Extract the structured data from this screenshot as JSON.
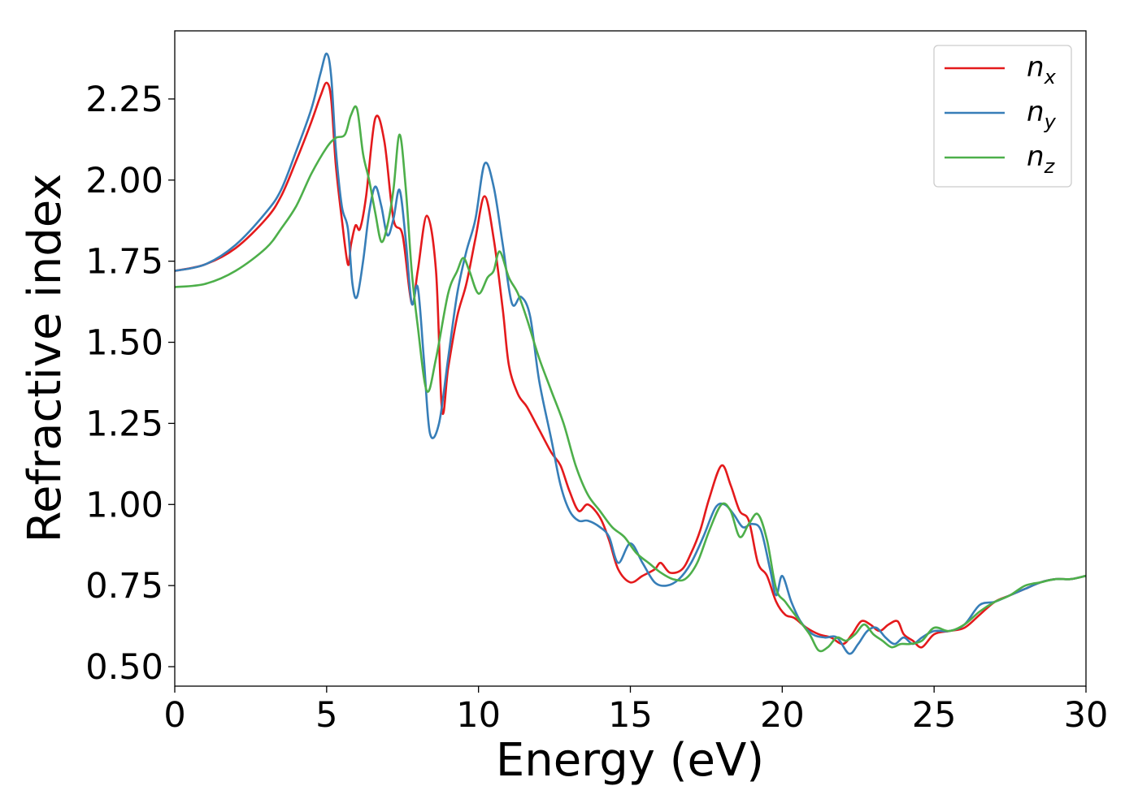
{
  "chart_data": {
    "type": "line",
    "title": "",
    "xlabel": "Energy (eV)",
    "ylabel": "Refractive index",
    "xlim": [
      0,
      30
    ],
    "ylim": [
      0.44,
      2.46
    ],
    "xticks": [
      0,
      5,
      10,
      15,
      20,
      25,
      30
    ],
    "xtick_labels": [
      "0",
      "5",
      "10",
      "15",
      "20",
      "25",
      "30"
    ],
    "yticks": [
      0.5,
      0.75,
      1.0,
      1.25,
      1.5,
      1.75,
      2.0,
      2.25
    ],
    "ytick_labels": [
      "0.50",
      "0.75",
      "1.00",
      "1.25",
      "1.50",
      "1.75",
      "2.00",
      "2.25"
    ],
    "grid": false,
    "legend_position": "top-right",
    "series": [
      {
        "name": "n_x",
        "legend_base": "n",
        "legend_sub": "x",
        "color": "#e41a1c",
        "x": [
          0,
          1,
          2,
          3,
          3.5,
          4,
          4.5,
          4.8,
          5.0,
          5.15,
          5.3,
          5.5,
          5.7,
          5.8,
          5.95,
          6.1,
          6.3,
          6.6,
          6.9,
          7.2,
          7.5,
          7.8,
          8.0,
          8.3,
          8.6,
          8.8,
          9.0,
          9.3,
          9.6,
          9.9,
          10.2,
          10.5,
          10.8,
          11.0,
          11.3,
          11.6,
          12.0,
          12.4,
          12.7,
          13.0,
          13.3,
          13.6,
          14.0,
          14.3,
          14.6,
          15.0,
          15.4,
          15.8,
          16.0,
          16.3,
          16.7,
          17.0,
          17.3,
          17.6,
          18.0,
          18.3,
          18.6,
          18.9,
          19.2,
          19.5,
          19.8,
          20.1,
          20.4,
          20.8,
          21.2,
          21.6,
          22.0,
          22.3,
          22.6,
          22.9,
          23.2,
          23.5,
          23.8,
          24.0,
          24.3,
          24.6,
          25.0,
          25.5,
          26.0,
          26.5,
          27.0,
          27.5,
          28.0,
          28.5,
          29.0,
          29.5,
          30.0
        ],
        "y": [
          1.72,
          1.74,
          1.79,
          1.88,
          1.95,
          2.06,
          2.18,
          2.26,
          2.3,
          2.25,
          2.05,
          1.88,
          1.74,
          1.8,
          1.86,
          1.85,
          1.95,
          2.19,
          2.12,
          1.88,
          1.83,
          1.62,
          1.72,
          1.89,
          1.72,
          1.29,
          1.42,
          1.58,
          1.68,
          1.82,
          1.95,
          1.82,
          1.6,
          1.43,
          1.34,
          1.3,
          1.23,
          1.16,
          1.12,
          1.04,
          0.98,
          1.0,
          0.96,
          0.89,
          0.8,
          0.76,
          0.78,
          0.8,
          0.82,
          0.79,
          0.8,
          0.85,
          0.92,
          1.02,
          1.12,
          1.06,
          0.98,
          0.95,
          0.82,
          0.78,
          0.7,
          0.66,
          0.65,
          0.62,
          0.6,
          0.59,
          0.57,
          0.6,
          0.64,
          0.63,
          0.61,
          0.63,
          0.64,
          0.6,
          0.58,
          0.56,
          0.6,
          0.61,
          0.62,
          0.66,
          0.7,
          0.72,
          0.74,
          0.76,
          0.77,
          0.77,
          0.78
        ]
      },
      {
        "name": "n_y",
        "legend_base": "n",
        "legend_sub": "y",
        "color": "#377eb8",
        "x": [
          0,
          1,
          2,
          3,
          3.5,
          4,
          4.5,
          4.8,
          5.0,
          5.15,
          5.3,
          5.5,
          5.7,
          5.85,
          6.0,
          6.2,
          6.4,
          6.6,
          6.8,
          7.0,
          7.2,
          7.4,
          7.6,
          7.8,
          8.0,
          8.2,
          8.4,
          8.7,
          9.0,
          9.3,
          9.6,
          9.9,
          10.2,
          10.5,
          10.8,
          11.1,
          11.4,
          11.7,
          12.0,
          12.4,
          12.7,
          13.0,
          13.3,
          13.6,
          14.0,
          14.3,
          14.6,
          15.0,
          15.4,
          15.8,
          16.2,
          16.6,
          17.0,
          17.4,
          17.8,
          18.1,
          18.4,
          18.7,
          19.0,
          19.3,
          19.6,
          19.8,
          20.0,
          20.3,
          20.6,
          21.0,
          21.4,
          21.8,
          22.2,
          22.5,
          22.8,
          23.1,
          23.4,
          23.7,
          24.0,
          24.3,
          24.6,
          25.0,
          25.5,
          26.0,
          26.5,
          27.0,
          27.5,
          28.0,
          28.5,
          29.0,
          29.5,
          30.0
        ],
        "y": [
          1.72,
          1.74,
          1.8,
          1.9,
          1.97,
          2.09,
          2.22,
          2.33,
          2.39,
          2.32,
          2.1,
          1.92,
          1.85,
          1.68,
          1.64,
          1.75,
          1.9,
          1.98,
          1.92,
          1.83,
          1.88,
          1.97,
          1.82,
          1.62,
          1.67,
          1.45,
          1.22,
          1.25,
          1.45,
          1.65,
          1.78,
          1.88,
          2.05,
          1.98,
          1.8,
          1.62,
          1.64,
          1.58,
          1.38,
          1.2,
          1.06,
          0.98,
          0.95,
          0.95,
          0.93,
          0.9,
          0.82,
          0.88,
          0.82,
          0.76,
          0.75,
          0.77,
          0.82,
          0.9,
          0.99,
          1.0,
          0.97,
          0.93,
          0.94,
          0.92,
          0.8,
          0.72,
          0.78,
          0.7,
          0.64,
          0.6,
          0.59,
          0.59,
          0.54,
          0.57,
          0.61,
          0.62,
          0.59,
          0.57,
          0.59,
          0.57,
          0.59,
          0.61,
          0.61,
          0.63,
          0.69,
          0.7,
          0.72,
          0.74,
          0.76,
          0.77,
          0.77,
          0.78
        ]
      },
      {
        "name": "n_z",
        "legend_base": "n",
        "legend_sub": "z",
        "color": "#4daf4a",
        "x": [
          0,
          1,
          2,
          3,
          3.5,
          4,
          4.5,
          5.0,
          5.3,
          5.6,
          5.8,
          6.0,
          6.2,
          6.4,
          6.6,
          6.8,
          7.0,
          7.2,
          7.4,
          7.6,
          7.8,
          8.0,
          8.3,
          8.6,
          9.0,
          9.3,
          9.5,
          9.7,
          10.0,
          10.3,
          10.5,
          10.7,
          11.0,
          11.3,
          11.6,
          12.0,
          12.4,
          12.8,
          13.2,
          13.6,
          14.0,
          14.4,
          14.8,
          15.2,
          15.6,
          16.0,
          16.4,
          16.8,
          17.2,
          17.6,
          18.0,
          18.3,
          18.6,
          18.9,
          19.2,
          19.5,
          19.8,
          20.1,
          20.5,
          20.9,
          21.2,
          21.5,
          21.8,
          22.1,
          22.4,
          22.7,
          23.0,
          23.3,
          23.6,
          23.9,
          24.2,
          24.6,
          25.0,
          25.5,
          26.0,
          26.5,
          27.0,
          27.5,
          28.0,
          28.5,
          29.0,
          29.5,
          30.0
        ],
        "y": [
          1.67,
          1.68,
          1.72,
          1.79,
          1.85,
          1.92,
          2.02,
          2.1,
          2.13,
          2.14,
          2.2,
          2.22,
          2.08,
          2.0,
          1.9,
          1.81,
          1.86,
          1.97,
          2.14,
          1.98,
          1.72,
          1.55,
          1.35,
          1.45,
          1.65,
          1.72,
          1.76,
          1.72,
          1.65,
          1.7,
          1.72,
          1.78,
          1.7,
          1.65,
          1.57,
          1.45,
          1.35,
          1.25,
          1.12,
          1.03,
          0.98,
          0.93,
          0.9,
          0.85,
          0.82,
          0.79,
          0.77,
          0.77,
          0.82,
          0.92,
          1.0,
          0.98,
          0.9,
          0.94,
          0.97,
          0.89,
          0.74,
          0.7,
          0.65,
          0.6,
          0.55,
          0.56,
          0.59,
          0.58,
          0.6,
          0.63,
          0.6,
          0.58,
          0.56,
          0.57,
          0.57,
          0.58,
          0.62,
          0.61,
          0.63,
          0.67,
          0.7,
          0.72,
          0.75,
          0.76,
          0.77,
          0.77,
          0.78
        ]
      }
    ]
  }
}
